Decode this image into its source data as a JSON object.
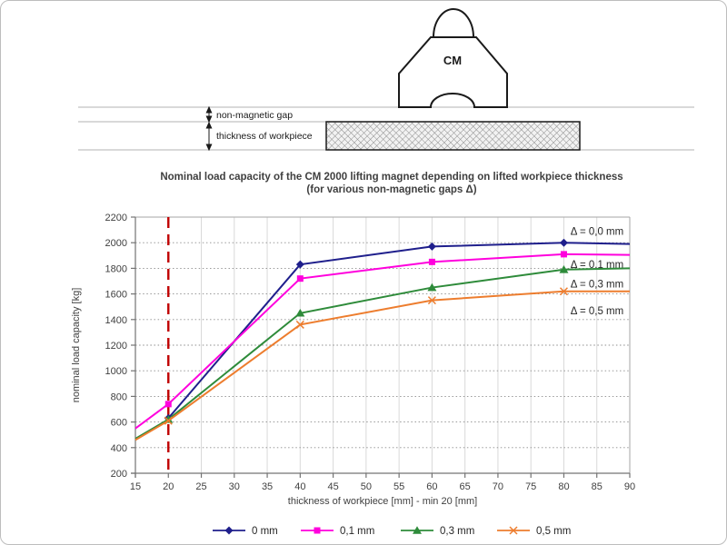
{
  "diagram": {
    "magnet_label": "CM",
    "gap_label": "non-magnetic gap",
    "thickness_label": "thickness of workpiece"
  },
  "title": {
    "line1": "Nominal load capacity of the CM 2000 lifting magnet depending on lifted workpiece thickness",
    "line2": "(for various non-magnetic gaps Δ)"
  },
  "chart_data": {
    "type": "line",
    "title": "Nominal load capacity of the CM 2000 lifting magnet depending on lifted workpiece thickness (for various non-magnetic gaps Δ)",
    "xlabel": "thickness of workpiece [mm] - min 20 [mm]",
    "ylabel": "nominal load capacity [kg]",
    "xlim": [
      15,
      90
    ],
    "ylim": [
      200,
      2200
    ],
    "x_ticks": [
      15,
      20,
      25,
      30,
      35,
      40,
      45,
      50,
      55,
      60,
      65,
      70,
      75,
      80,
      85,
      90
    ],
    "y_ticks": [
      200,
      400,
      600,
      800,
      1000,
      1200,
      1400,
      1600,
      1800,
      2000,
      2200
    ],
    "grid": true,
    "legend_position": "bottom",
    "reference_line": {
      "x": 20,
      "color": "#c00000",
      "style": "dashed"
    },
    "series": [
      {
        "name": "0 mm",
        "color": "#1f1f8c",
        "marker": "diamond",
        "annotation": {
          "label": "Δ = 0,0 mm",
          "x": 81,
          "y": 2090
        },
        "points": [
          {
            "x": 20,
            "y": 630,
            "m": true
          },
          {
            "x": 40,
            "y": 1830,
            "m": true
          },
          {
            "x": 60,
            "y": 1970,
            "m": true
          },
          {
            "x": 80,
            "y": 2000,
            "m": true
          },
          {
            "x": 90,
            "y": 1990,
            "m": false
          }
        ]
      },
      {
        "name": "0,1 mm",
        "color": "#ff00dd",
        "marker": "square",
        "annotation": {
          "label": "Δ = 0,1 mm",
          "x": 81,
          "y": 1830
        },
        "points": [
          {
            "x": 15,
            "y": 550,
            "m": false
          },
          {
            "x": 20,
            "y": 740,
            "m": true
          },
          {
            "x": 40,
            "y": 1720,
            "m": true
          },
          {
            "x": 60,
            "y": 1850,
            "m": true
          },
          {
            "x": 80,
            "y": 1910,
            "m": true
          },
          {
            "x": 90,
            "y": 1905,
            "m": false
          }
        ]
      },
      {
        "name": "0,3 mm",
        "color": "#2e8b3a",
        "marker": "triangle",
        "annotation": {
          "label": "Δ = 0,3 mm",
          "x": 81,
          "y": 1680
        },
        "points": [
          {
            "x": 15,
            "y": 470,
            "m": false
          },
          {
            "x": 20,
            "y": 620,
            "m": true
          },
          {
            "x": 40,
            "y": 1450,
            "m": true
          },
          {
            "x": 60,
            "y": 1650,
            "m": true
          },
          {
            "x": 80,
            "y": 1790,
            "m": true
          },
          {
            "x": 90,
            "y": 1800,
            "m": false
          }
        ]
      },
      {
        "name": "0,5 mm",
        "color": "#ed7d2e",
        "marker": "x",
        "annotation": {
          "label": "Δ = 0,5 mm",
          "x": 81,
          "y": 1470
        },
        "points": [
          {
            "x": 15,
            "y": 460,
            "m": false
          },
          {
            "x": 20,
            "y": 610,
            "m": true
          },
          {
            "x": 40,
            "y": 1360,
            "m": true
          },
          {
            "x": 60,
            "y": 1550,
            "m": true
          },
          {
            "x": 80,
            "y": 1620,
            "m": true
          },
          {
            "x": 90,
            "y": 1620,
            "m": false
          }
        ]
      }
    ]
  },
  "legend": {
    "items": [
      {
        "label": "0 mm"
      },
      {
        "label": "0,1 mm"
      },
      {
        "label": "0,3 mm"
      },
      {
        "label": "0,5 mm"
      }
    ]
  }
}
